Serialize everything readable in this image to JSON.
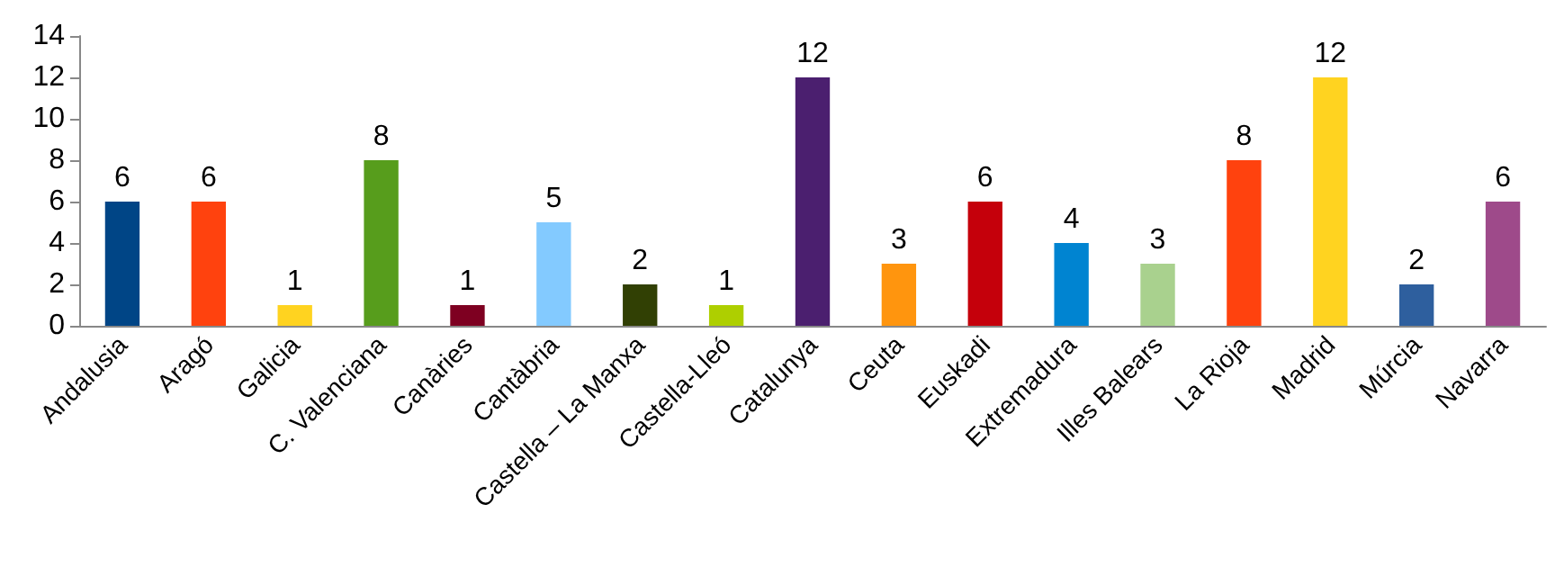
{
  "chart_data": {
    "type": "bar",
    "categories": [
      "Andalusia",
      "Aragó",
      "Galicia",
      "C. Valenciana",
      "Canàries",
      "Cantàbria",
      "Castella – La Manxa",
      "Castella-Lleó",
      "Catalunya",
      "Ceuta",
      "Euskadi",
      "Extremadura",
      "Illes Balears",
      "La Rioja",
      "Madrid",
      "Múrcia",
      "Navarra"
    ],
    "values": [
      6,
      6,
      1,
      8,
      1,
      5,
      2,
      1,
      12,
      3,
      6,
      4,
      3,
      8,
      12,
      2,
      6
    ],
    "colors": [
      "#004586",
      "#ff420e",
      "#ffd320",
      "#579d1c",
      "#7e0021",
      "#83caff",
      "#314004",
      "#aecf00",
      "#4b1f6f",
      "#ff950e",
      "#c5000b",
      "#0084d1",
      "#a9d18e",
      "#ff420e",
      "#ffd320",
      "#2e5f9e",
      "#9e4a8a"
    ],
    "ylim": [
      0,
      14
    ],
    "yticks": [
      0,
      2,
      4,
      6,
      8,
      10,
      12,
      14
    ],
    "grid": false,
    "data_labels": true
  }
}
